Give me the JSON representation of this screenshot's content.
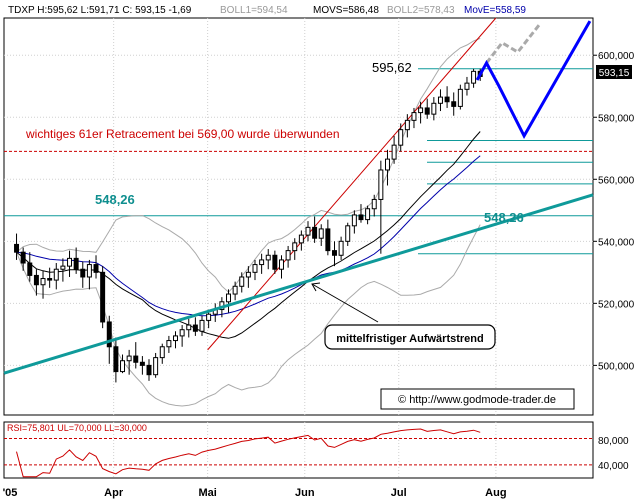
{
  "header": {
    "symbol": "TDXP",
    "stats": "TDXP H:595,62 L:591,71 C: 593,15 -1,69",
    "boll1": "BOLL1=594,54",
    "movs": "MOVS=586,48",
    "boll2": "BOLL2=578,43",
    "move": "MovE=558,59"
  },
  "annotations": {
    "retracement": "wichtiges 61er Retracement bei 569,00 wurde überwunden",
    "level_595": "595,62",
    "level_548_left": "548,26",
    "level_548_right": "548,26",
    "trend_label": "mittelfristiger Aufwärtstrend",
    "copyright": "© http://www.godmode-trader.de",
    "last_price": "593,15"
  },
  "rsi": {
    "label": "RSI=75,801 UL=70,000 LL=30,000",
    "ticks": [
      "80,000",
      "40,000"
    ]
  },
  "x_axis": {
    "labels": [
      "'05",
      "Apr",
      "Mai",
      "Jun",
      "Jul",
      "Aug"
    ]
  },
  "colors": {
    "candle": "#000000",
    "bollinger": "#aaaaaa",
    "movs": "#000000",
    "move": "#0000aa",
    "trendline": "#0f9a9a",
    "channel": "#cc0000",
    "projection_blue": "#0000ff",
    "projection_gray": "#aaaaaa"
  },
  "chart_data": {
    "type": "candlestick",
    "title": "TDXP",
    "y_ticks": [
      500,
      520,
      540,
      560,
      580,
      600
    ],
    "ylim": [
      484,
      612
    ],
    "horizontal_levels": [
      595.62,
      572.5,
      569.0,
      565.5,
      558.5,
      548.26,
      536.0
    ],
    "trendline": {
      "start": {
        "date": "2005-03-01",
        "value": 497.5
      },
      "end": {
        "date": "2005-08-31",
        "value": 555.0
      }
    },
    "projection_blue": [
      {
        "date": "2005-07-26",
        "value": 592.0
      },
      {
        "date": "2005-07-29",
        "value": 597.5
      },
      {
        "date": "2005-08-02",
        "value": 590.0
      },
      {
        "date": "2005-08-10",
        "value": 574.0
      },
      {
        "date": "2005-08-31",
        "value": 611.0
      }
    ],
    "projection_gray": [
      {
        "date": "2005-07-29",
        "value": 597.5
      },
      {
        "date": "2005-08-03",
        "value": 604.0
      },
      {
        "date": "2005-08-08",
        "value": 601.0
      },
      {
        "date": "2005-08-15",
        "value": 610.0
      }
    ],
    "rsi_ticks": [
      40,
      80
    ],
    "rsi_levels": [
      70,
      30
    ],
    "rsi_ylim": [
      10,
      95
    ],
    "candles": [
      [
        539.0,
        542.5,
        534.0,
        536.5
      ],
      [
        536.5,
        538.0,
        530.5,
        533.0
      ],
      [
        533.0,
        536.5,
        527.0,
        529.0
      ],
      [
        529.0,
        531.0,
        522.5,
        526.0
      ],
      [
        526.0,
        530.5,
        521.5,
        528.0
      ],
      [
        528.0,
        531.5,
        525.0,
        527.5
      ],
      [
        527.5,
        533.0,
        524.5,
        531.0
      ],
      [
        531.0,
        534.5,
        527.0,
        532.0
      ],
      [
        532.0,
        537.0,
        528.5,
        534.5
      ],
      [
        534.5,
        538.0,
        529.5,
        531.0
      ],
      [
        531.0,
        533.5,
        525.0,
        528.5
      ],
      [
        528.5,
        534.0,
        524.5,
        532.5
      ],
      [
        532.5,
        535.5,
        528.0,
        530.0
      ],
      [
        530.0,
        532.0,
        512.0,
        514.0
      ],
      [
        514.0,
        516.0,
        500.5,
        506.0
      ],
      [
        506.0,
        509.0,
        494.5,
        498.0
      ],
      [
        498.0,
        503.5,
        497.5,
        501.5
      ],
      [
        501.5,
        505.0,
        497.0,
        503.0
      ],
      [
        503.0,
        507.5,
        499.0,
        501.0
      ],
      [
        501.0,
        503.0,
        497.0,
        500.0
      ],
      [
        500.0,
        502.0,
        495.0,
        497.0
      ],
      [
        497.0,
        504.0,
        496.0,
        502.5
      ],
      [
        502.5,
        507.0,
        500.5,
        506.0
      ],
      [
        506.0,
        509.5,
        504.0,
        508.0
      ],
      [
        508.0,
        511.0,
        505.5,
        509.5
      ],
      [
        509.5,
        513.0,
        506.0,
        511.5
      ],
      [
        511.5,
        515.0,
        509.0,
        513.0
      ],
      [
        513.0,
        515.5,
        509.5,
        511.0
      ],
      [
        511.0,
        516.0,
        509.5,
        514.5
      ],
      [
        514.5,
        518.0,
        512.0,
        516.5
      ],
      [
        516.5,
        520.0,
        514.0,
        518.0
      ],
      [
        518.0,
        522.0,
        515.5,
        520.5
      ],
      [
        520.5,
        524.5,
        517.0,
        523.0
      ],
      [
        523.0,
        527.0,
        521.0,
        525.5
      ],
      [
        525.5,
        530.0,
        523.5,
        528.5
      ],
      [
        528.5,
        532.0,
        525.0,
        530.0
      ],
      [
        530.0,
        534.0,
        527.5,
        532.5
      ],
      [
        532.5,
        536.0,
        529.5,
        534.0
      ],
      [
        534.0,
        537.5,
        531.0,
        535.5
      ],
      [
        535.5,
        537.0,
        529.5,
        531.0
      ],
      [
        531.0,
        535.5,
        528.0,
        534.0
      ],
      [
        534.0,
        538.5,
        531.5,
        537.0
      ],
      [
        537.0,
        541.0,
        534.0,
        539.5
      ],
      [
        539.5,
        543.5,
        537.0,
        542.0
      ],
      [
        542.0,
        546.5,
        540.0,
        544.5
      ],
      [
        544.5,
        548.0,
        539.5,
        541.0
      ],
      [
        541.0,
        545.5,
        538.5,
        544.0
      ],
      [
        544.0,
        547.0,
        535.5,
        537.0
      ],
      [
        537.0,
        540.0,
        532.0,
        535.5
      ],
      [
        535.5,
        541.5,
        534.0,
        540.0
      ],
      [
        540.0,
        546.0,
        538.5,
        545.0
      ],
      [
        545.0,
        550.0,
        542.5,
        548.5
      ],
      [
        548.5,
        552.0,
        546.0,
        547.0
      ],
      [
        547.0,
        551.5,
        545.5,
        550.5
      ],
      [
        550.5,
        555.0,
        548.0,
        553.5
      ],
      [
        553.5,
        566.0,
        536.0,
        563.0
      ],
      [
        563.0,
        569.5,
        558.0,
        566.5
      ],
      [
        566.5,
        574.0,
        565.0,
        571.0
      ],
      [
        571.0,
        578.0,
        569.0,
        576.0
      ],
      [
        576.0,
        581.0,
        573.5,
        579.0
      ],
      [
        579.0,
        583.0,
        576.5,
        581.5
      ],
      [
        581.5,
        585.0,
        578.0,
        583.0
      ],
      [
        583.0,
        586.0,
        579.5,
        581.0
      ],
      [
        581.0,
        586.5,
        579.0,
        584.5
      ],
      [
        584.5,
        589.0,
        582.0,
        586.5
      ],
      [
        586.5,
        590.0,
        583.0,
        585.0
      ],
      [
        585.0,
        588.0,
        580.5,
        583.5
      ],
      [
        583.5,
        590.5,
        582.5,
        589.0
      ],
      [
        589.0,
        593.0,
        587.0,
        591.0
      ],
      [
        591.0,
        595.62,
        589.5,
        594.8
      ],
      [
        594.8,
        595.62,
        591.71,
        593.15
      ]
    ]
  }
}
